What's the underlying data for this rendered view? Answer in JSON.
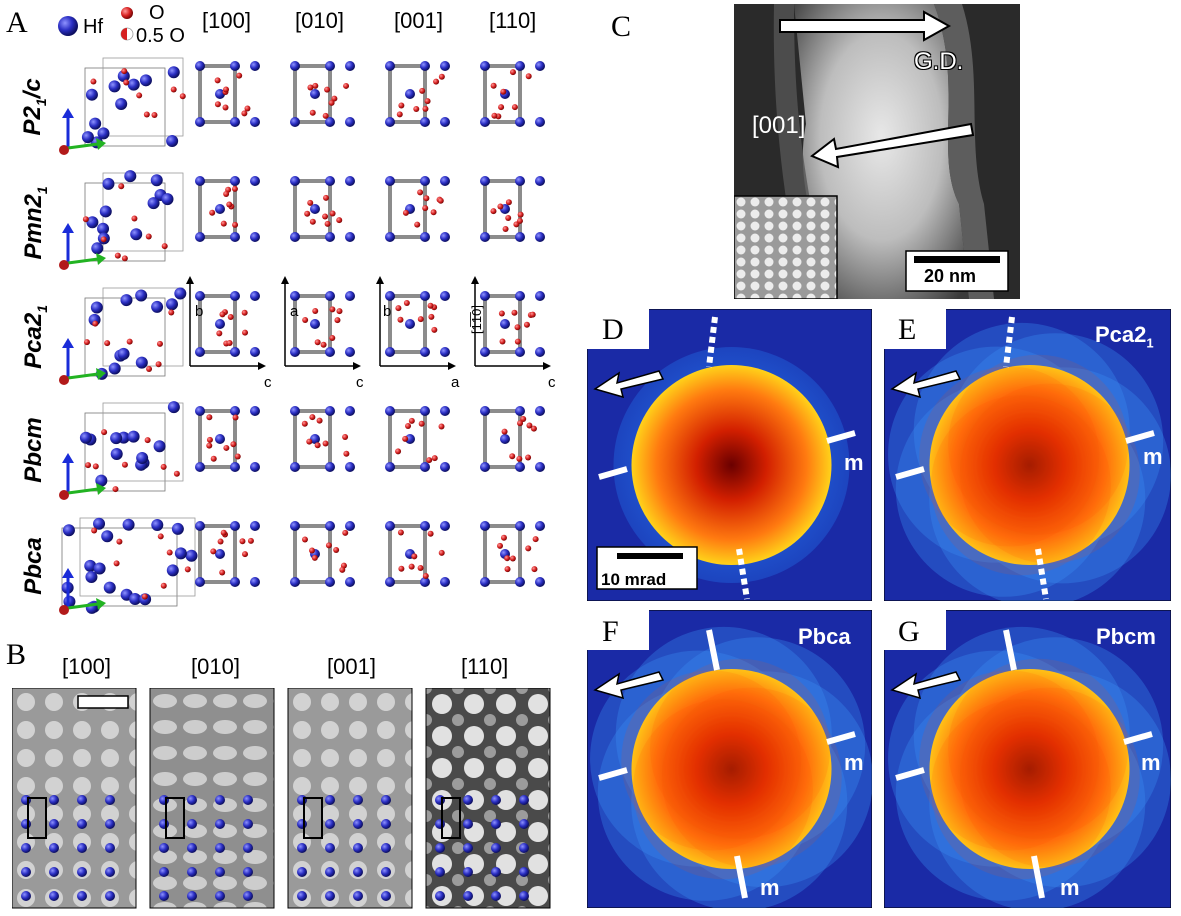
{
  "panel_labels": {
    "a": "A",
    "b": "B",
    "c": "C",
    "d": "D",
    "e": "E",
    "f": "F",
    "g": "G"
  },
  "legend": {
    "hf": "Hf",
    "o": "O",
    "half_o": "0.5 O"
  },
  "directions": [
    "[100]",
    "[010]",
    "[001]",
    "[110]"
  ],
  "phases": [
    {
      "main": "P2",
      "sub": "1",
      "rest": "/c"
    },
    {
      "main": "Pmn2",
      "sub": "1",
      "rest": ""
    },
    {
      "main": "Pca2",
      "sub": "1",
      "rest": ""
    },
    {
      "main": "Pbcm",
      "sub": "",
      "rest": ""
    },
    {
      "main": "Pbca",
      "sub": "",
      "rest": ""
    }
  ],
  "axis_labels": {
    "p100": {
      "v": "b",
      "h": "c"
    },
    "p010": {
      "v": "a",
      "h": "c"
    },
    "p001": {
      "v": "b",
      "h": "a"
    },
    "p110": {
      "v": "[1̅1̅0]",
      "h": "c"
    }
  },
  "panel_b": {
    "directions": [
      "[100]",
      "[010]",
      "[001]",
      "[110]"
    ]
  },
  "panel_c": {
    "gd_label": "G.D.",
    "zone_label": "[001]",
    "scale_bar": "20 nm"
  },
  "panel_d": {
    "scale_bar": "10 mrad",
    "mirror": "m"
  },
  "panel_e": {
    "title_main": "Pca2",
    "title_sub": "1",
    "mirror": "m"
  },
  "panel_f": {
    "title": "Pbca",
    "mirror": "m"
  },
  "panel_g": {
    "title": "Pbcm",
    "mirror": "m"
  },
  "colors": {
    "hf": "#2b2fc4",
    "o": "#d62020",
    "bond": "#8c8c8c",
    "cbed_blue": "#1a3fb5"
  }
}
